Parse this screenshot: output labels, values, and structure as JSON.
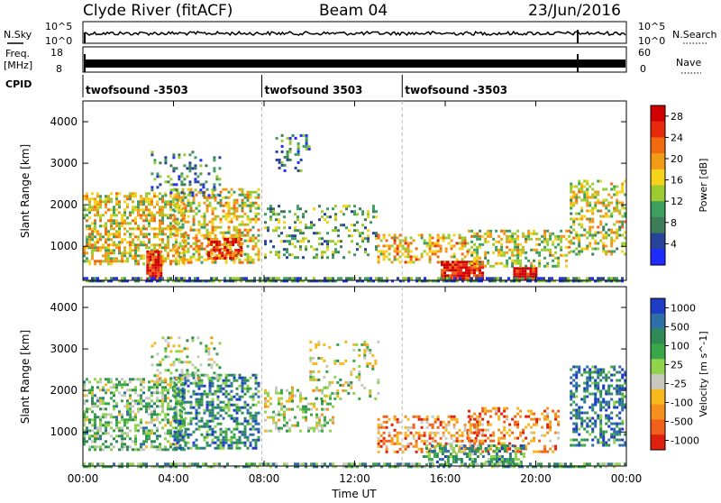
{
  "header": {
    "station": "Clyde River (fitACF)",
    "beam": "Beam 04",
    "date": "23/Jun/2016"
  },
  "side_labels": {
    "nsky": "N.Sky",
    "nsearch": "N.Search",
    "freq": "Freq.",
    "freq_unit": "[MHz]",
    "nave": "Nave",
    "cpid": "CPID"
  },
  "noise_panel": {
    "left_ticks": [
      "10^5",
      "10^0"
    ],
    "right_ticks": [
      "10^5",
      "10^0"
    ]
  },
  "freq_panel": {
    "left_ticks": [
      "18",
      "8"
    ],
    "right_ticks": [
      "60",
      "0"
    ]
  },
  "cpid_segments": [
    {
      "label": "twofsound -3503",
      "start_hour": 0.0
    },
    {
      "label": "twofsound 3503",
      "start_hour": 7.9
    },
    {
      "label": "twofsound -3503",
      "start_hour": 14.1
    }
  ],
  "chart_data": {
    "type": "heatmap",
    "x_ticks": [
      "00:00",
      "04:00",
      "08:00",
      "12:00",
      "16:00",
      "20:00",
      "00:00"
    ],
    "xlim_hours": [
      0,
      24
    ],
    "xlabel": "Time UT",
    "ylabel": "Slant Range [km]",
    "y_ticks": [
      "1000",
      "2000",
      "3000",
      "4000"
    ],
    "ylim_km": [
      180,
      4500
    ],
    "panels": [
      {
        "name": "power",
        "colorbar_label": "Power [dB]",
        "colorbar_ticks": [
          "4",
          "8",
          "12",
          "16",
          "20",
          "24",
          "28"
        ],
        "colors": [
          "#1f2cff",
          "#27449a",
          "#3e7d58",
          "#3d9f5f",
          "#9acc30",
          "#f6d21a",
          "#f29b17",
          "#f06a10",
          "#e82a0c",
          "#d00000"
        ],
        "regions": [
          {
            "t": [
              0.0,
              4.5
            ],
            "r": [
              600,
              2300
            ],
            "level": 0.55,
            "density": 0.55
          },
          {
            "t": [
              2.8,
              3.5
            ],
            "r": [
              200,
              900
            ],
            "level": 0.9,
            "density": 0.9
          },
          {
            "t": [
              4.0,
              7.8
            ],
            "r": [
              600,
              2400
            ],
            "level": 0.55,
            "density": 0.5
          },
          {
            "t": [
              5.5,
              7.0
            ],
            "r": [
              700,
              1200
            ],
            "level": 0.8,
            "density": 0.7
          },
          {
            "t": [
              3.0,
              6.0
            ],
            "r": [
              2200,
              3300
            ],
            "level": 0.25,
            "density": 0.2
          },
          {
            "t": [
              8.0,
              13.0
            ],
            "r": [
              700,
              2000
            ],
            "level": 0.35,
            "density": 0.25
          },
          {
            "t": [
              8.5,
              10.0
            ],
            "r": [
              2800,
              3700
            ],
            "level": 0.25,
            "density": 0.25
          },
          {
            "t": [
              13.0,
              17.0
            ],
            "r": [
              600,
              1300
            ],
            "level": 0.6,
            "density": 0.45
          },
          {
            "t": [
              15.8,
              17.6
            ],
            "r": [
              250,
              650
            ],
            "level": 0.93,
            "density": 0.9
          },
          {
            "t": [
              19.0,
              20.0
            ],
            "r": [
              220,
              500
            ],
            "level": 0.95,
            "density": 0.9
          },
          {
            "t": [
              17.0,
              21.5
            ],
            "r": [
              500,
              1400
            ],
            "level": 0.5,
            "density": 0.4
          },
          {
            "t": [
              21.5,
              24.0
            ],
            "r": [
              800,
              2600
            ],
            "level": 0.5,
            "density": 0.45
          },
          {
            "t": [
              0.0,
              24.0
            ],
            "r": [
              180,
              260
            ],
            "level": 0.25,
            "density": 0.7
          }
        ]
      },
      {
        "name": "velocity",
        "colorbar_label": "Velocity [m s^-1]",
        "colorbar_ticks": [
          "1000",
          "500",
          "100",
          "25",
          "-25",
          "-100",
          "-500",
          "-1000"
        ],
        "colors": [
          "#1f3cc6",
          "#2f6fa8",
          "#2f8a55",
          "#3aa64a",
          "#8fd44a",
          "#c8c8c0",
          "#f6b81a",
          "#f5901c",
          "#f0601a",
          "#e0200e"
        ],
        "regions": [
          {
            "t": [
              0.0,
              4.5
            ],
            "r": [
              600,
              2300
            ],
            "level": 0.4,
            "density": 0.5
          },
          {
            "t": [
              4.0,
              7.8
            ],
            "r": [
              600,
              2400
            ],
            "level": 0.25,
            "density": 0.5
          },
          {
            "t": [
              3.0,
              6.0
            ],
            "r": [
              2200,
              3300
            ],
            "level": 0.5,
            "density": 0.25
          },
          {
            "t": [
              8.0,
              11.0
            ],
            "r": [
              1000,
              2100
            ],
            "level": 0.5,
            "density": 0.35
          },
          {
            "t": [
              10.0,
              13.0
            ],
            "r": [
              1800,
              3200
            ],
            "level": 0.5,
            "density": 0.2
          },
          {
            "t": [
              13.0,
              17.5
            ],
            "r": [
              500,
              1400
            ],
            "level": 0.75,
            "density": 0.4
          },
          {
            "t": [
              17.0,
              21.0
            ],
            "r": [
              500,
              1600
            ],
            "level": 0.8,
            "density": 0.35
          },
          {
            "t": [
              15.0,
              19.5
            ],
            "r": [
              200,
              700
            ],
            "level": 0.3,
            "density": 0.55
          },
          {
            "t": [
              21.5,
              24.0
            ],
            "r": [
              700,
              2600
            ],
            "level": 0.2,
            "density": 0.45
          },
          {
            "t": [
              0.0,
              24.0
            ],
            "r": [
              180,
              260
            ],
            "level": 0.35,
            "density": 0.6
          }
        ]
      }
    ],
    "grid": false
  }
}
